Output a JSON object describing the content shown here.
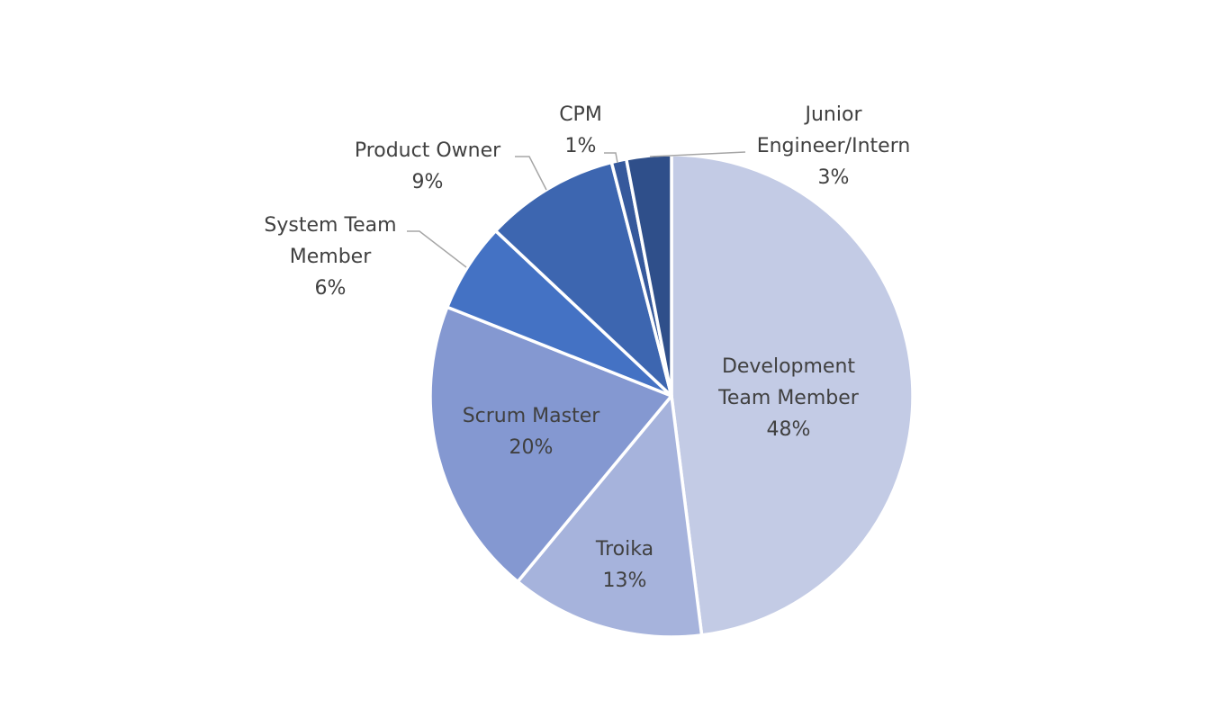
{
  "chart_data": {
    "type": "pie",
    "title": "",
    "series": [
      {
        "values": [
          48,
          13,
          20,
          6,
          9,
          1,
          3
        ],
        "categories": [
          "Development Team Member",
          "Troika",
          "Scrum Master",
          "System Team Member",
          "Product Owner",
          "CPM",
          "Junior Engineer/Intern"
        ]
      }
    ],
    "slices": [
      {
        "key": "development-team-member",
        "label_lines": [
          "Development",
          "Team Member"
        ],
        "value": 48,
        "value_label": "48%",
        "color": "#c3cbe5"
      },
      {
        "key": "troika",
        "label_lines": [
          "Troika"
        ],
        "value": 13,
        "value_label": "13%",
        "color": "#a6b3dc"
      },
      {
        "key": "scrum-master",
        "label_lines": [
          "Scrum Master"
        ],
        "value": 20,
        "value_label": "20%",
        "color": "#8498d1"
      },
      {
        "key": "system-team-member",
        "label_lines": [
          "System Team",
          "Member"
        ],
        "value": 6,
        "value_label": "6%",
        "color": "#4472c4"
      },
      {
        "key": "product-owner",
        "label_lines": [
          "Product Owner"
        ],
        "value": 9,
        "value_label": "9%",
        "color": "#3d66b0"
      },
      {
        "key": "cpm",
        "label_lines": [
          "CPM"
        ],
        "value": 1,
        "value_label": "1%",
        "color": "#36599c"
      },
      {
        "key": "junior-engineer-intern",
        "label_lines": [
          "Junior",
          "Engineer/Intern"
        ],
        "value": 3,
        "value_label": "3%",
        "color": "#2f4f8a"
      }
    ],
    "legend": "none",
    "data_labels": "category-and-percent"
  }
}
